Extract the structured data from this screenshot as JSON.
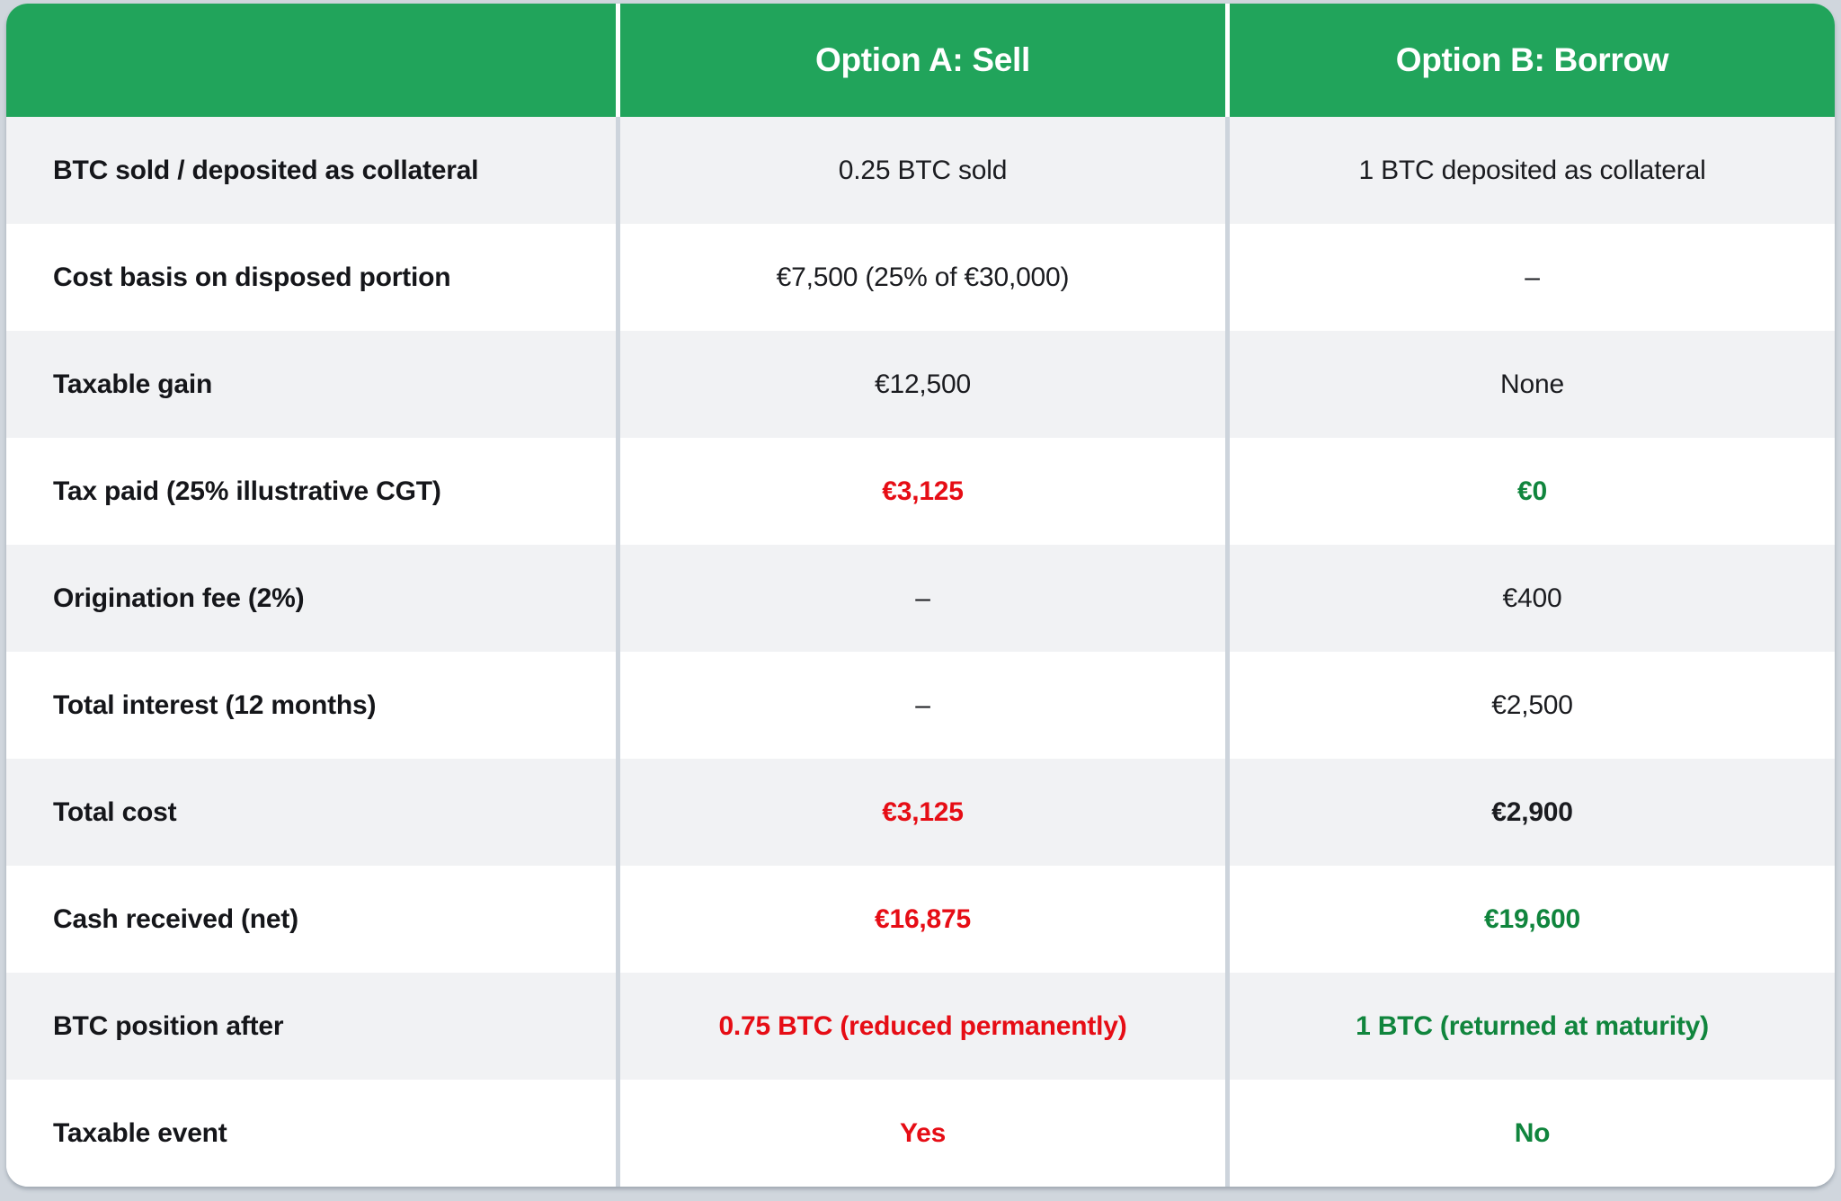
{
  "colors": {
    "header_green": "#21A45B",
    "negative_red": "#E60D15",
    "positive_green": "#10853D",
    "row_stripe_gray": "#F1F2F4",
    "divider_gray": "#CDD4DC",
    "page_background": "#D0D6DD"
  },
  "table": {
    "columns": [
      "",
      "Option A: Sell",
      "Option B: Borrow"
    ],
    "rows": [
      {
        "label": "BTC sold / deposited as collateral",
        "a": {
          "text": "0.25 BTC sold",
          "emphasis": ""
        },
        "b": {
          "text": "1 BTC deposited as collateral",
          "emphasis": ""
        }
      },
      {
        "label": "Cost basis on disposed portion",
        "a": {
          "text": "€7,500 (25% of €30,000)",
          "emphasis": ""
        },
        "b": {
          "text": "–",
          "emphasis": ""
        }
      },
      {
        "label": "Taxable gain",
        "a": {
          "text": "€12,500",
          "emphasis": ""
        },
        "b": {
          "text": "None",
          "emphasis": ""
        }
      },
      {
        "label": "Tax paid (25% illustrative CGT)",
        "a": {
          "text": "€3,125",
          "emphasis": "neg strong"
        },
        "b": {
          "text": "€0",
          "emphasis": "pos strong"
        }
      },
      {
        "label": "Origination fee (2%)",
        "a": {
          "text": "–",
          "emphasis": ""
        },
        "b": {
          "text": "€400",
          "emphasis": ""
        }
      },
      {
        "label": "Total interest (12 months)",
        "a": {
          "text": "–",
          "emphasis": ""
        },
        "b": {
          "text": "€2,500",
          "emphasis": ""
        }
      },
      {
        "label": "Total cost",
        "a": {
          "text": "€3,125",
          "emphasis": "neg strong"
        },
        "b": {
          "text": "€2,900",
          "emphasis": "strong"
        }
      },
      {
        "label": "Cash received (net)",
        "a": {
          "text": "€16,875",
          "emphasis": "neg strong"
        },
        "b": {
          "text": "€19,600",
          "emphasis": "pos strong"
        }
      },
      {
        "label": "BTC position after",
        "a": {
          "text": "0.75 BTC (reduced permanently)",
          "emphasis": "neg strong"
        },
        "b": {
          "text": "1 BTC (returned at maturity)",
          "emphasis": "pos strong"
        }
      },
      {
        "label": "Taxable event",
        "a": {
          "text": "Yes",
          "emphasis": "neg strong"
        },
        "b": {
          "text": "No",
          "emphasis": "pos strong"
        }
      }
    ]
  }
}
